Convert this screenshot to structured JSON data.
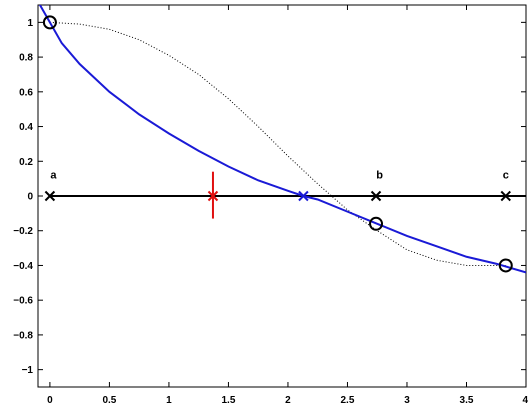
{
  "chart_data": {
    "type": "line",
    "title": "",
    "xlabel": "",
    "ylabel": "",
    "xlim": [
      -0.1,
      4.0
    ],
    "ylim": [
      -1.1,
      1.1
    ],
    "grid": false,
    "x_ticks": [
      0,
      0.5,
      1,
      1.5,
      2,
      2.5,
      3,
      3.5,
      4
    ],
    "x_tick_labels": [
      "0",
      "0.5",
      "1",
      "1.5",
      "2",
      "2.5",
      "3",
      "3.5",
      "4"
    ],
    "y_ticks": [
      1,
      0.8,
      0.6,
      0.4,
      0.2,
      0,
      -0.2,
      -0.4,
      -0.6,
      -0.8,
      -1
    ],
    "y_tick_labels": [
      "1",
      "0.8",
      "0.6",
      "0.4",
      "0.2",
      "0",
      "−0.2",
      "−0.4",
      "−0.6",
      "−0.8",
      "−1"
    ],
    "series": [
      {
        "style": "dotted",
        "color": "#000000",
        "x": [
          0,
          0.25,
          0.5,
          0.75,
          1.0,
          1.25,
          1.5,
          1.75,
          2.0,
          2.25,
          2.5,
          2.75,
          3.0,
          3.25,
          3.5,
          3.75,
          3.83
        ],
        "y": [
          1.0,
          0.99,
          0.96,
          0.9,
          0.81,
          0.7,
          0.56,
          0.4,
          0.23,
          0.07,
          -0.08,
          -0.2,
          -0.31,
          -0.37,
          -0.4,
          -0.4,
          -0.4
        ]
      },
      {
        "style": "solid",
        "color": "#1a1ad6",
        "x": [
          -0.1,
          0,
          0.1,
          0.25,
          0.5,
          0.75,
          1.0,
          1.25,
          1.5,
          1.75,
          2.0,
          2.13,
          2.25,
          2.5,
          2.75,
          3.0,
          3.25,
          3.5,
          3.75,
          4.0
        ],
        "y": [
          1.12,
          1.0,
          0.88,
          0.76,
          0.6,
          0.47,
          0.36,
          0.26,
          0.17,
          0.09,
          0.03,
          0.0,
          -0.02,
          -0.09,
          -0.16,
          -0.23,
          -0.29,
          -0.35,
          -0.39,
          -0.44
        ]
      }
    ],
    "zero_line": {
      "y": 0,
      "color": "#000000"
    },
    "x_markers": [
      {
        "x": 0,
        "y": 0,
        "color": "#000000"
      },
      {
        "x": 2.74,
        "y": 0,
        "color": "#000000"
      },
      {
        "x": 3.83,
        "y": 0,
        "color": "#000000"
      },
      {
        "x": 2.13,
        "y": 0,
        "color": "#1a1ad6"
      },
      {
        "x": 1.37,
        "y": 0,
        "color": "#e01010"
      }
    ],
    "circle_markers": [
      {
        "x": 0,
        "y": 1.0
      },
      {
        "x": 2.74,
        "y": -0.16
      },
      {
        "x": 3.83,
        "y": -0.4
      }
    ],
    "error_bar": {
      "x": 1.37,
      "y_low": -0.13,
      "y_high": 0.14,
      "color": "#e01010"
    },
    "point_labels": [
      {
        "text": "a",
        "x": 0.03,
        "y": 0.1
      },
      {
        "text": "b",
        "x": 2.77,
        "y": 0.1
      },
      {
        "text": "c",
        "x": 3.83,
        "y": 0.1
      }
    ]
  }
}
